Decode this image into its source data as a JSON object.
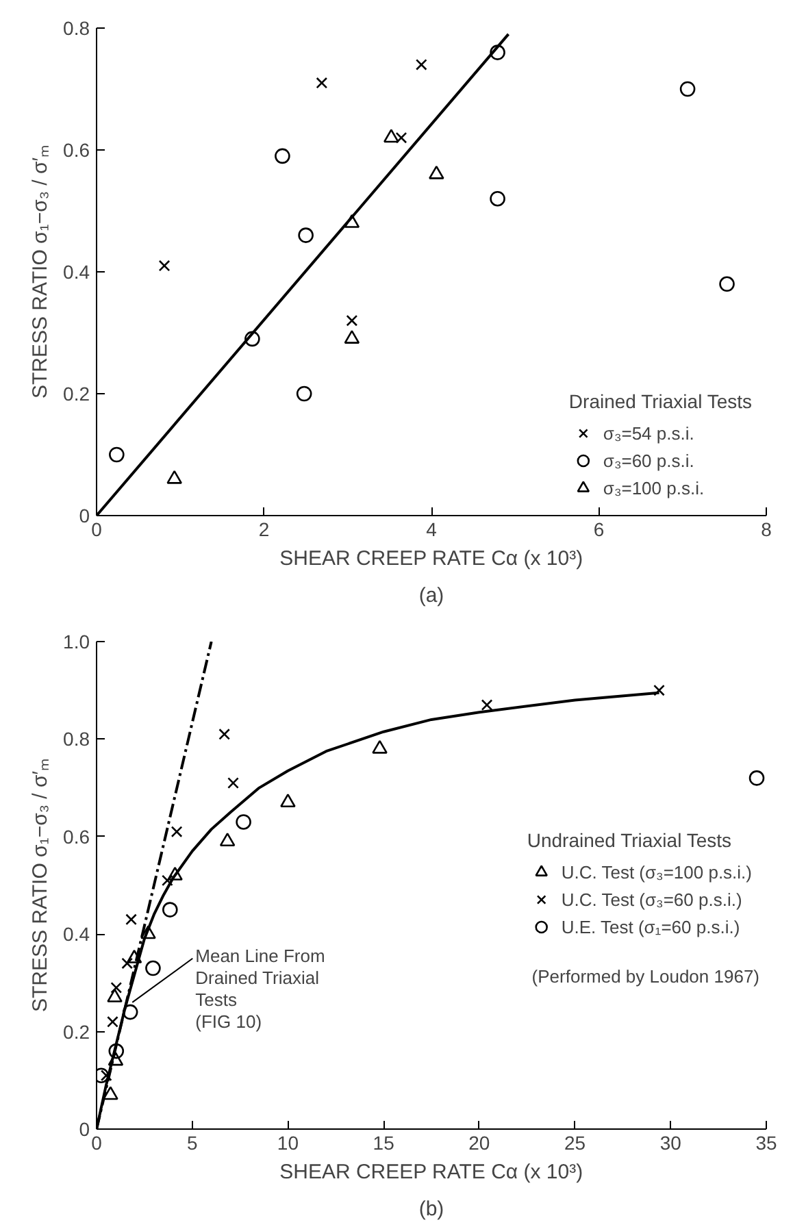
{
  "chart_data": [
    {
      "type": "scatter",
      "title": "(a)",
      "xlabel": "SHEAR CREEP RATE Cα (x 10³)",
      "ylabel": "STRESS RATIO σ₁−σ₃ / σ′ₘ",
      "legend_title": "Drained Triaxial Tests",
      "xlim": [
        0,
        8
      ],
      "ylim": [
        0,
        0.8
      ],
      "xticks": [
        0,
        2,
        4,
        6,
        8
      ],
      "yticks": [
        0,
        0.2,
        0.4,
        0.6,
        0.8
      ],
      "grid": false,
      "legend": "bottom right",
      "series": [
        {
          "name": "σ₃=54 p.s.i.",
          "color": "#000000",
          "marker": "cross",
          "x": [
            0.81,
            2.69,
            3.88,
            3.05,
            3.64
          ],
          "values": [
            0.41,
            0.71,
            0.74,
            0.32,
            0.62
          ]
        },
        {
          "name": "σ₃=60 p.s.i.",
          "color": "#000000",
          "marker": "circle",
          "x": [
            0.24,
            1.86,
            2.22,
            2.5,
            2.48,
            4.79,
            4.79,
            7.06,
            7.53
          ],
          "values": [
            0.1,
            0.29,
            0.59,
            0.46,
            0.2,
            0.76,
            0.52,
            0.7,
            0.38
          ]
        },
        {
          "name": "σ₃=100 p.s.i.",
          "color": "#000000",
          "marker": "triangle",
          "x": [
            0.93,
            3.05,
            3.52,
            4.06,
            3.05
          ],
          "values": [
            0.06,
            0.48,
            0.62,
            0.56,
            0.29
          ]
        },
        {
          "type": "line",
          "color": "#000000",
          "line_style": "solid",
          "x": [
            0,
            4.92
          ],
          "values": [
            0,
            0.79
          ]
        }
      ]
    },
    {
      "type": "scatter",
      "title": "(b)",
      "xlabel": "SHEAR CREEP RATE Cα (x 10³)",
      "ylabel": "STRESS RATIO σ₁−σ₃ / σ′ₘ",
      "legend_title": "Undrained Triaxial Tests",
      "xlim": [
        0,
        35
      ],
      "ylim": [
        0,
        1.0
      ],
      "xticks": [
        0,
        5,
        10,
        15,
        20,
        25,
        30,
        35
      ],
      "yticks": [
        0,
        0.2,
        0.4,
        0.6,
        0.8,
        {
          "value": 1.0,
          "label": "1.0"
        }
      ],
      "grid": false,
      "legend": "right",
      "annotations": [
        "(Performed by Loudon 1967)",
        {
          "text": "Mean Line From\nDrained Triaxial\nTests\n(FIG 10)",
          "x": 1.87,
          "y": 0.26
        }
      ],
      "series": [
        {
          "name": "U.C. Test (σ₃=100 p.s.i.)",
          "color": "#000000",
          "marker": "triangle",
          "x": [
            0.73,
            1.0,
            0.95,
            1.97,
            2.7,
            4.1,
            6.84,
            10.0,
            14.8
          ],
          "values": [
            0.07,
            0.14,
            0.27,
            0.35,
            0.4,
            0.52,
            0.59,
            0.67,
            0.78
          ]
        },
        {
          "name": "U.C. Test (σ₃=60 p.s.i.)",
          "color": "#000000",
          "marker": "cross",
          "x": [
            0.51,
            0.84,
            1.03,
            1.6,
            1.81,
            3.7,
            4.19,
            6.68,
            7.14,
            20.4,
            29.4
          ],
          "values": [
            0.11,
            0.22,
            0.29,
            0.34,
            0.43,
            0.51,
            0.61,
            0.81,
            0.71,
            0.87,
            0.9
          ]
        },
        {
          "name": "U.E. Test (σ₁=60 p.s.i.)",
          "color": "#000000",
          "marker": "circle",
          "x": [
            0.24,
            1.03,
            1.76,
            2.95,
            3.84,
            7.68,
            34.5
          ],
          "values": [
            0.11,
            0.16,
            0.24,
            0.33,
            0.45,
            0.63,
            0.72
          ]
        },
        {
          "type": "line",
          "color": "#000000",
          "line_style": "solid",
          "x": [
            0,
            0.5,
            1,
            1.5,
            2,
            2.5,
            3,
            3.5,
            4,
            5,
            6,
            7,
            8.5,
            10,
            12,
            15,
            17.5,
            20,
            25,
            29.4
          ],
          "values": [
            0,
            0.09,
            0.17,
            0.25,
            0.32,
            0.39,
            0.44,
            0.48,
            0.515,
            0.57,
            0.615,
            0.65,
            0.7,
            0.735,
            0.775,
            0.815,
            0.84,
            0.855,
            0.88,
            0.895
          ]
        },
        {
          "type": "line",
          "color": "#000000",
          "line_style": "dashed",
          "x": [
            0,
            6.0
          ],
          "values": [
            0,
            1.0
          ]
        }
      ]
    }
  ]
}
